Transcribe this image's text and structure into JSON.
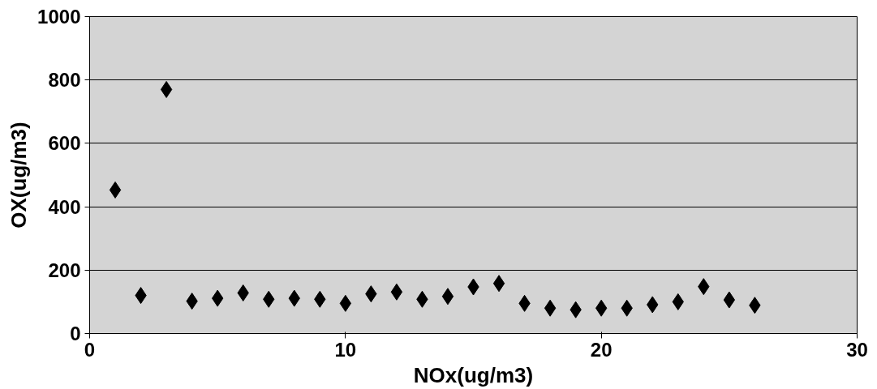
{
  "chart_data": {
    "type": "scatter",
    "xlabel": "NOx(ug/m3)",
    "ylabel": "OX(ug/m3)",
    "x": [
      1,
      2,
      3,
      4,
      5,
      6,
      7,
      8,
      9,
      10,
      11,
      12,
      13,
      14,
      15,
      16,
      17,
      18,
      19,
      20,
      21,
      22,
      23,
      24,
      25,
      26
    ],
    "series": [
      {
        "color": "#000000",
        "values": [
          453,
          120,
          770,
          102,
          111,
          128,
          108,
          111,
          108,
          95,
          125,
          131,
          108,
          117,
          147,
          158,
          95,
          80,
          75,
          80,
          80,
          91,
          100,
          148,
          106,
          89
        ]
      }
    ],
    "xlim": [
      0,
      30
    ],
    "xticks": [
      0,
      10,
      20,
      30
    ],
    "ylim": [
      0,
      1000
    ],
    "yticks": [
      0,
      200,
      400,
      600,
      800,
      1000
    ],
    "grid": "y",
    "marker": "diamond"
  }
}
